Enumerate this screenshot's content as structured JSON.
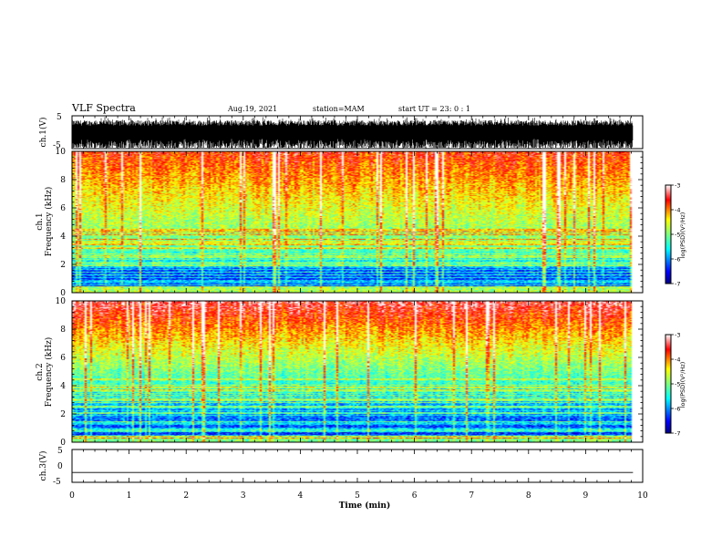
{
  "header": {
    "title": "VLF Spectra",
    "date": "Aug.19, 2021",
    "station": "station=MAM",
    "start": "start  UT =   23: 0  : 1"
  },
  "colors": {
    "spectrum": [
      "#00007f",
      "#0000ff",
      "#0080ff",
      "#00ffff",
      "#80ff80",
      "#ffff00",
      "#ff8000",
      "#ff0000",
      "#ff8080",
      "#ffffff"
    ]
  },
  "chart_data": [
    {
      "type": "line",
      "panel": "ch1-waveform",
      "ylabel": "ch.1(V)",
      "ylim": [
        -5,
        5
      ],
      "yticks": [
        "5",
        "-5"
      ],
      "description_of_values": "dense noisy waveform",
      "x_unit_min": [
        0,
        9.83
      ]
    },
    {
      "type": "heatmap",
      "panel": "ch1-spectrogram",
      "ylabel_top": "ch.1",
      "ylabel": "Frequency (kHz)",
      "ylim": [
        0,
        10
      ],
      "yticks": [
        "0",
        "2",
        "4",
        "6",
        "8",
        "10"
      ],
      "colorbar": {
        "label": "log(PSD)(V²/Hz)",
        "range": [
          -7,
          -3
        ],
        "ticks": [
          "-3",
          "-4",
          "-5",
          "-6",
          "-7"
        ]
      }
    },
    {
      "type": "heatmap",
      "panel": "ch2-spectrogram",
      "ylabel_top": "ch.2",
      "ylabel": "Frequency (kHz)",
      "ylim": [
        0,
        10
      ],
      "yticks": [
        "0",
        "2",
        "4",
        "6",
        "8",
        "10"
      ],
      "colorbar": {
        "label": "log(PSD)(V²/Hz)",
        "range": [
          -7,
          -3
        ],
        "ticks": [
          "-3",
          "-4",
          "-5",
          "-6",
          "-7"
        ]
      }
    },
    {
      "type": "line",
      "panel": "ch3-waveform",
      "ylabel": "ch.3(V)",
      "ylim": [
        -5,
        5
      ],
      "yticks": [
        "5",
        "0",
        "-5"
      ],
      "constant_value": -2
    }
  ],
  "xaxis": {
    "label": "Time (min)",
    "ticks": [
      "0",
      "1",
      "2",
      "3",
      "4",
      "5",
      "6",
      "7",
      "8",
      "9",
      "10"
    ],
    "range": [
      0,
      10
    ]
  }
}
